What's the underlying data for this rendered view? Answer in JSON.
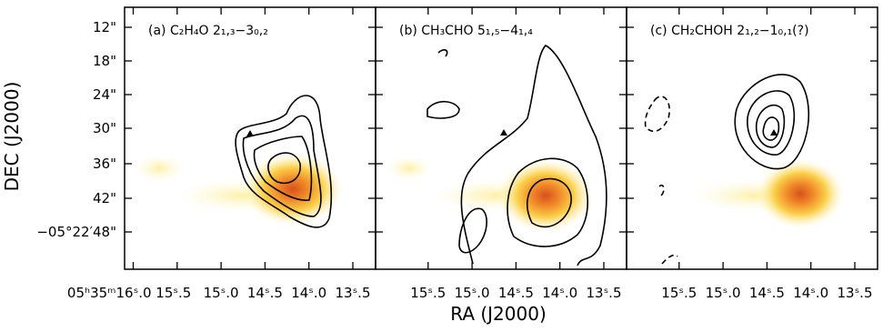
{
  "panels": [
    {
      "title": "(a) C₂H₄O 2₁,₃−3₀,₂",
      "xticks": [
        "05ʰ35ᵐ16ˢ.0",
        "15ˢ.5",
        "15ˢ.0",
        "14ˢ.5",
        "14ˢ.0",
        "13ˢ.5"
      ]
    },
    {
      "title": "(b) CH₃CHO 5₁,₅−4₁,₄",
      "xticks": [
        "15ˢ.5",
        "15ˢ.0",
        "14ˢ.5",
        "14ˢ.0",
        "13ˢ.5"
      ]
    },
    {
      "title": "(c) CH₂CHOH 2₁,₂−1₀,₁(?)",
      "xticks": [
        "15ˢ.5",
        "15ˢ.0",
        "14ˢ.5",
        "14ˢ.0",
        "13ˢ.5"
      ]
    }
  ],
  "yticks": [
    "12\"",
    "18\"",
    "24\"",
    "30\"",
    "36\"",
    "42\"",
    "−05°22′48\""
  ],
  "x_label": "RA (J2000)",
  "y_label": "DEC (J2000)"
}
